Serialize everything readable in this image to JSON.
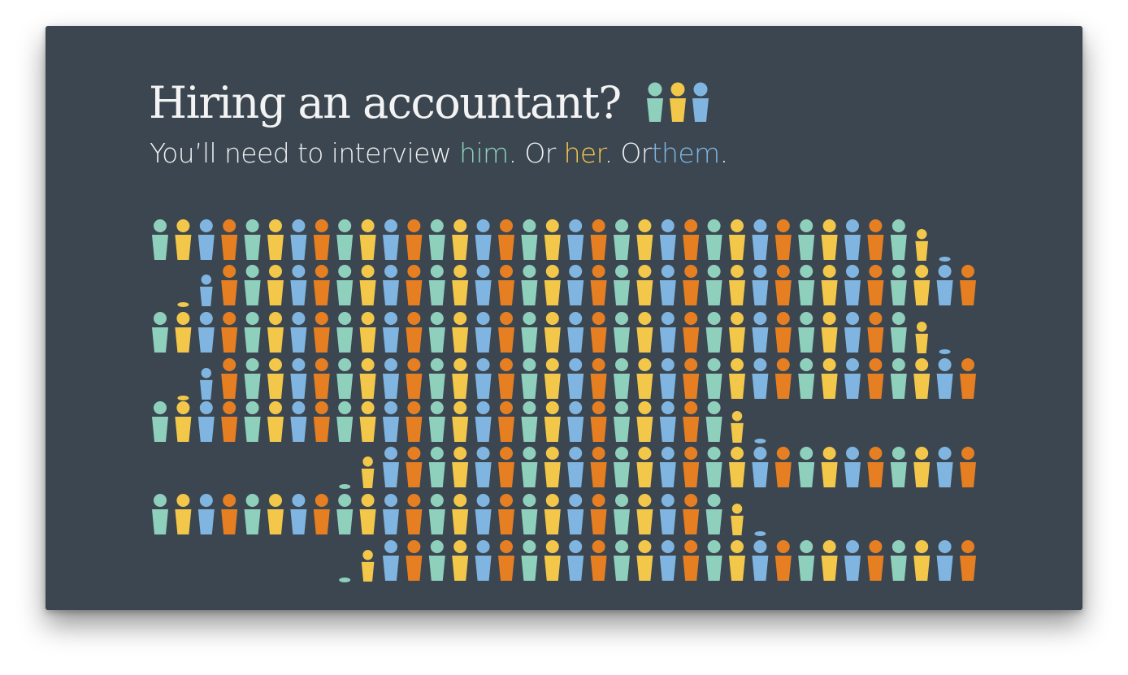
{
  "heading": {
    "title": "Hiring an accountant?",
    "icon": "three-people-icon"
  },
  "subtitle": {
    "lead": "You’ll need to interview ",
    "him": "him",
    "sep1": ". Or ",
    "her": "her",
    "sep2": ". Or",
    "them": "them",
    "end": "."
  },
  "colors": {
    "background": "#3b4650",
    "green": "#8fd0bc",
    "yellow": "#f3c84a",
    "blue": "#7fb5e0",
    "orange": "#e67e22",
    "text": "#f3f3f3"
  }
}
